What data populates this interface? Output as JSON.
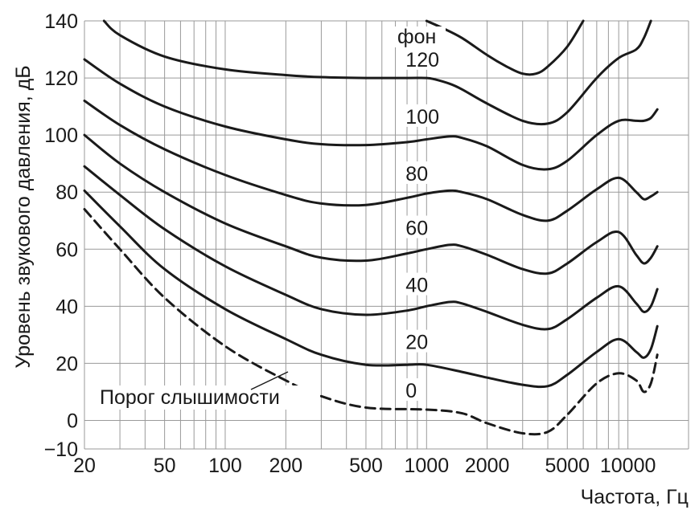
{
  "chart_data": {
    "type": "line",
    "title": "",
    "xlabel": "Частота, Гц",
    "ylabel": "Уровень звукового давления, дБ",
    "x_scale": "log",
    "xlim": [
      20,
      20000
    ],
    "ylim": [
      -10,
      140
    ],
    "grid": true,
    "x_ticks": [
      {
        "value": 20,
        "label": "20"
      },
      {
        "value": 50,
        "label": "50"
      },
      {
        "value": 100,
        "label": "100"
      },
      {
        "value": 200,
        "label": "200"
      },
      {
        "value": 500,
        "label": "500"
      },
      {
        "value": 1000,
        "label": "1000"
      },
      {
        "value": 2000,
        "label": "2000"
      },
      {
        "value": 5000,
        "label": "5000"
      },
      {
        "value": 10000,
        "label": "10000"
      }
    ],
    "y_ticks": [
      {
        "value": 140,
        "label": "140"
      },
      {
        "value": 120,
        "label": "120"
      },
      {
        "value": 100,
        "label": "100"
      },
      {
        "value": 80,
        "label": "80"
      },
      {
        "value": 60,
        "label": "60"
      },
      {
        "value": 40,
        "label": "40"
      },
      {
        "value": 20,
        "label": "20"
      },
      {
        "value": 0,
        "label": "0"
      },
      {
        "value": -10,
        "label": "−10"
      }
    ],
    "unit_label": "фон",
    "threshold_label": "Порог слышимости",
    "series": [
      {
        "name": "0",
        "dashed": true,
        "label_at": [
          1000,
          8
        ],
        "x": [
          20,
          30,
          50,
          100,
          200,
          300,
          500,
          1000,
          1500,
          2000,
          3000,
          4000,
          5000,
          7000,
          9000,
          11000,
          12000,
          13000,
          14000
        ],
        "y": [
          74,
          60,
          43,
          26,
          14,
          8.5,
          4.5,
          3.8,
          2.5,
          -1,
          -4.5,
          -4,
          2,
          13,
          16.5,
          14,
          10,
          13,
          23
        ]
      },
      {
        "name": "20",
        "dashed": false,
        "label_at": [
          1000,
          25
        ],
        "x": [
          20,
          30,
          50,
          100,
          200,
          300,
          500,
          800,
          1000,
          1500,
          2000,
          3000,
          4000,
          5000,
          7000,
          9000,
          11000,
          12000,
          13000,
          14000
        ],
        "y": [
          80.5,
          68,
          53,
          39,
          28.5,
          23,
          19.5,
          19.5,
          19.5,
          17,
          15,
          12.5,
          12,
          16,
          24,
          28.5,
          24,
          22,
          25,
          33
        ]
      },
      {
        "name": "40",
        "dashed": false,
        "label_at": [
          1000,
          45
        ],
        "x": [
          20,
          30,
          50,
          100,
          200,
          300,
          500,
          800,
          1000,
          1300,
          1500,
          2000,
          3000,
          4000,
          5000,
          7000,
          9000,
          11000,
          12000,
          13000,
          14000
        ],
        "y": [
          89,
          79,
          67,
          54,
          44,
          39,
          37,
          38.5,
          40,
          41.5,
          41,
          38,
          33.5,
          32,
          35.5,
          43,
          47,
          41,
          38,
          40,
          46
        ]
      },
      {
        "name": "60",
        "dashed": false,
        "label_at": [
          1000,
          65
        ],
        "x": [
          20,
          30,
          50,
          100,
          200,
          300,
          500,
          800,
          1000,
          1300,
          1500,
          2000,
          3000,
          4000,
          5000,
          7000,
          9000,
          11000,
          12000,
          13000,
          14000
        ],
        "y": [
          100,
          90,
          80,
          69,
          61,
          57,
          56,
          58.5,
          60,
          61.5,
          61,
          58,
          53,
          51.5,
          55,
          62.5,
          66,
          58,
          55,
          57,
          61
        ]
      },
      {
        "name": "80",
        "dashed": false,
        "label_at": [
          1000,
          84
        ],
        "x": [
          20,
          30,
          50,
          100,
          200,
          300,
          500,
          800,
          1000,
          1300,
          1500,
          2000,
          3000,
          4000,
          5000,
          7000,
          9000,
          11000,
          12000,
          13000,
          14000
        ],
        "y": [
          112,
          103.5,
          95,
          86,
          79,
          76,
          75.5,
          78,
          79.5,
          80.5,
          80,
          77.5,
          72,
          70,
          73.5,
          81,
          85,
          80,
          77.5,
          78.5,
          80
        ]
      },
      {
        "name": "100",
        "dashed": false,
        "label_at": [
          1000,
          104
        ],
        "x": [
          20,
          30,
          50,
          100,
          200,
          300,
          500,
          800,
          1000,
          1300,
          1500,
          2000,
          3000,
          4000,
          5000,
          7000,
          9000,
          11000,
          12000,
          13000,
          14000
        ],
        "y": [
          126.5,
          118,
          110,
          103,
          98.5,
          96.8,
          96.5,
          97.5,
          98.5,
          99.5,
          99,
          96,
          89.5,
          88,
          91,
          100,
          105,
          105,
          105,
          106,
          109
        ]
      },
      {
        "name": "120",
        "dashed": false,
        "label_at": [
          1000,
          124
        ],
        "x": [
          25,
          30,
          50,
          100,
          200,
          300,
          500,
          800,
          1000,
          1100,
          1300,
          1500,
          2000,
          3000,
          4000,
          5000,
          7000,
          9000,
          11000,
          12000,
          13000
        ],
        "y": [
          140,
          135,
          127.5,
          123,
          121,
          120.3,
          120,
          120,
          120,
          119.5,
          118,
          116,
          111,
          105,
          104,
          108,
          120,
          127,
          130,
          134,
          140
        ]
      },
      {
        "name": "",
        "dashed": false,
        "x": [
          1000,
          1200,
          1500,
          2000,
          2500,
          3000,
          3500,
          4000,
          5000,
          6000
        ],
        "y": [
          140,
          137.5,
          134,
          128,
          124,
          121.5,
          121.5,
          124,
          131,
          140
        ]
      }
    ]
  }
}
